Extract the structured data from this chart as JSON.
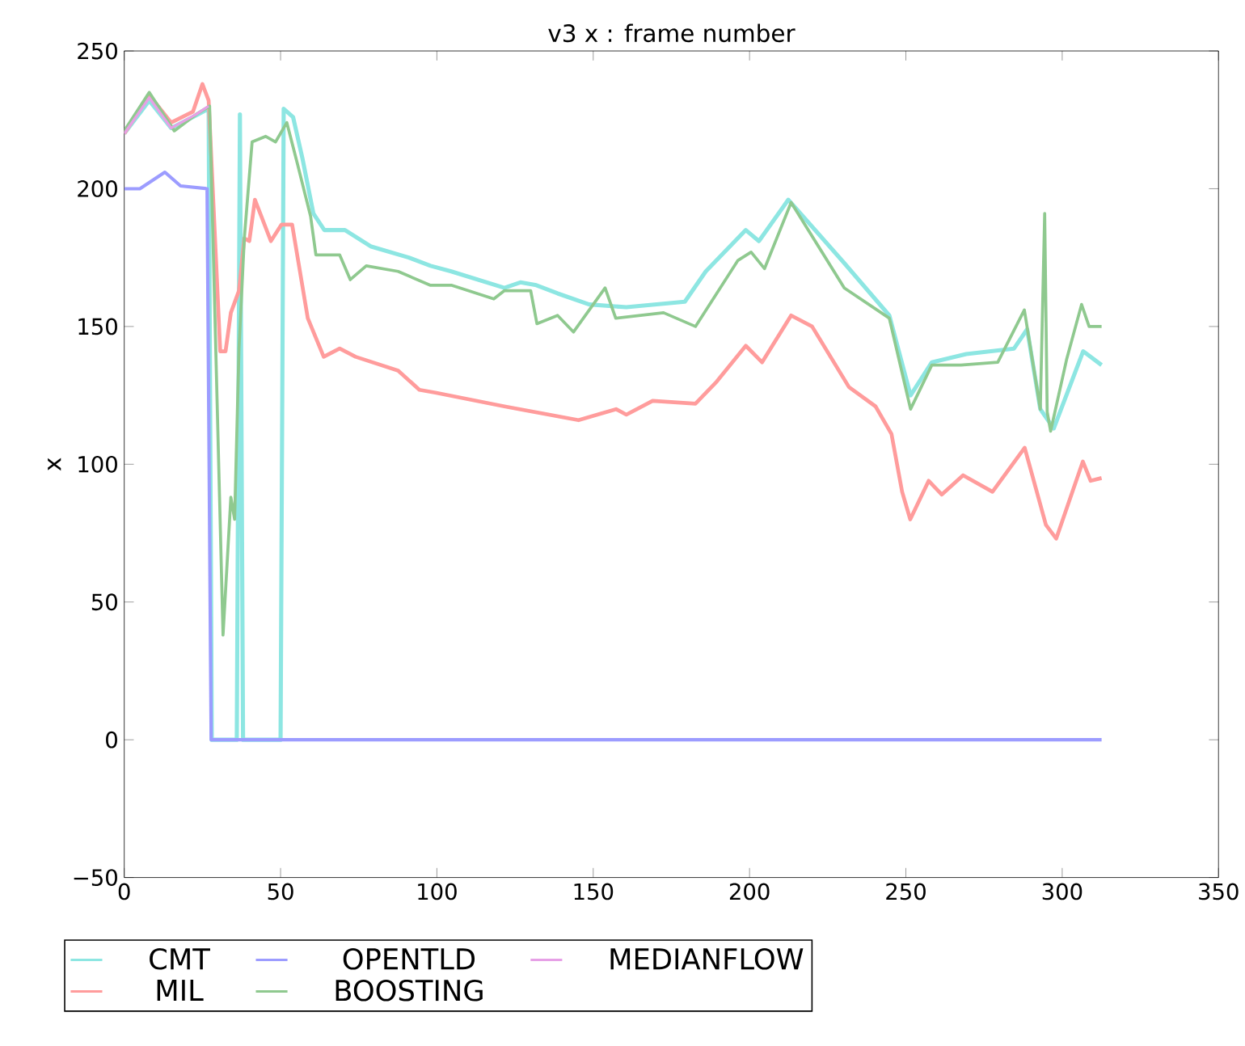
{
  "chart_data": {
    "type": "line",
    "title": "v3 x : frame number",
    "ylabel": "x",
    "xlim": [
      0,
      350
    ],
    "ylim": [
      -50,
      250
    ],
    "xticks": [
      0,
      50,
      100,
      150,
      200,
      250,
      300,
      350
    ],
    "yticks": [
      {
        "value": -50,
        "label": "−50"
      },
      0,
      50,
      100,
      150,
      200,
      250
    ],
    "legend": "bottom",
    "line_style": "solid",
    "series": [
      {
        "name": "CMT",
        "color": "#8de6e2",
        "x": [
          0,
          8,
          15,
          22,
          27,
          28,
          36,
          37,
          38,
          50,
          51,
          54,
          57,
          60.5,
          64,
          70.6,
          79,
          91,
          98,
          104.6,
          121.6,
          126.7,
          131.8,
          138.6,
          148.7,
          160.6,
          179.3,
          186,
          198.8,
          203,
          212.4,
          230.3,
          244.7,
          251.5,
          258.3,
          269.3,
          284.6,
          288.8,
          293,
          297.3,
          306.7,
          312.6
        ],
        "values": [
          220,
          232,
          222,
          226,
          229,
          0,
          0,
          227,
          0,
          0,
          229,
          226,
          211,
          191,
          185,
          185,
          179,
          175,
          172,
          170,
          164,
          166,
          165,
          162,
          158,
          157,
          159,
          170,
          185,
          181,
          196,
          173,
          154,
          125,
          137,
          140,
          142,
          149,
          120,
          113,
          141,
          136
        ]
      },
      {
        "name": "MIL",
        "color": "#ff9c9c",
        "x": [
          0,
          8,
          15,
          22,
          25,
          27,
          30.7,
          32.4,
          34.1,
          36.7,
          38.4,
          40,
          41.8,
          43.5,
          46.9,
          50.3,
          53.7,
          58.7,
          63.8,
          68.9,
          74,
          87.6,
          94.4,
          99.5,
          121.6,
          145.3,
          157.3,
          160.6,
          169,
          182.7,
          189.5,
          198.8,
          204,
          213.3,
          220,
          231.8,
          240.3,
          245.4,
          248.8,
          251.4,
          257.3,
          261.5,
          268.3,
          277.7,
          288,
          294.8,
          298.1,
          306.6,
          309.1,
          312.6
        ],
        "values": [
          220,
          234,
          224,
          228,
          238,
          232,
          141,
          141,
          155,
          163,
          182,
          181,
          196,
          191,
          181,
          187,
          187,
          153,
          139,
          142,
          139,
          134,
          127,
          126,
          121,
          116,
          120,
          118,
          123,
          122,
          130,
          143,
          137,
          154,
          150,
          128,
          121,
          111,
          90,
          80,
          94,
          89,
          96,
          90,
          106,
          78,
          73,
          101,
          94,
          95
        ]
      },
      {
        "name": "OPENTLD",
        "color": "#9c9cff",
        "x": [
          0,
          5,
          13,
          18,
          26.5,
          27.8,
          312.6
        ],
        "values": [
          200,
          200,
          206,
          201,
          200,
          0,
          0
        ]
      },
      {
        "name": "BOOSTING",
        "color": "#8fc98f",
        "x": [
          0,
          8,
          16,
          23,
          27.3,
          31.6,
          34.1,
          35.3,
          36.7,
          38.4,
          40.9,
          45.2,
          48.4,
          52,
          55.4,
          59.6,
          61.3,
          68.9,
          72.3,
          77.4,
          87.6,
          97.8,
          104.6,
          118.2,
          121.6,
          130,
          132,
          138.6,
          143.7,
          153.8,
          157.2,
          172.5,
          182.7,
          196.3,
          200.5,
          204.8,
          213.3,
          230.3,
          244.7,
          251.5,
          258.3,
          267.6,
          279.4,
          287.9,
          293,
          294.4,
          295.2,
          296.3,
          301.4,
          306.2,
          308.6,
          312.6
        ],
        "values": [
          221,
          235,
          221,
          227,
          230,
          38,
          88,
          80,
          142,
          182,
          217,
          219,
          217,
          224,
          209,
          190,
          176,
          176,
          167,
          172,
          170,
          165,
          165,
          160,
          163,
          163,
          151,
          154,
          148,
          164,
          153,
          155,
          150,
          174,
          177,
          171,
          195,
          164,
          153,
          120,
          136,
          136,
          137,
          156,
          120,
          191,
          119,
          112,
          138,
          158,
          150,
          150
        ]
      },
      {
        "name": "MEDIANFLOW",
        "color": "#e6a0e6",
        "x": [
          0,
          8,
          15,
          23,
          27
        ],
        "values": [
          220,
          233,
          222,
          227,
          230
        ]
      }
    ]
  }
}
